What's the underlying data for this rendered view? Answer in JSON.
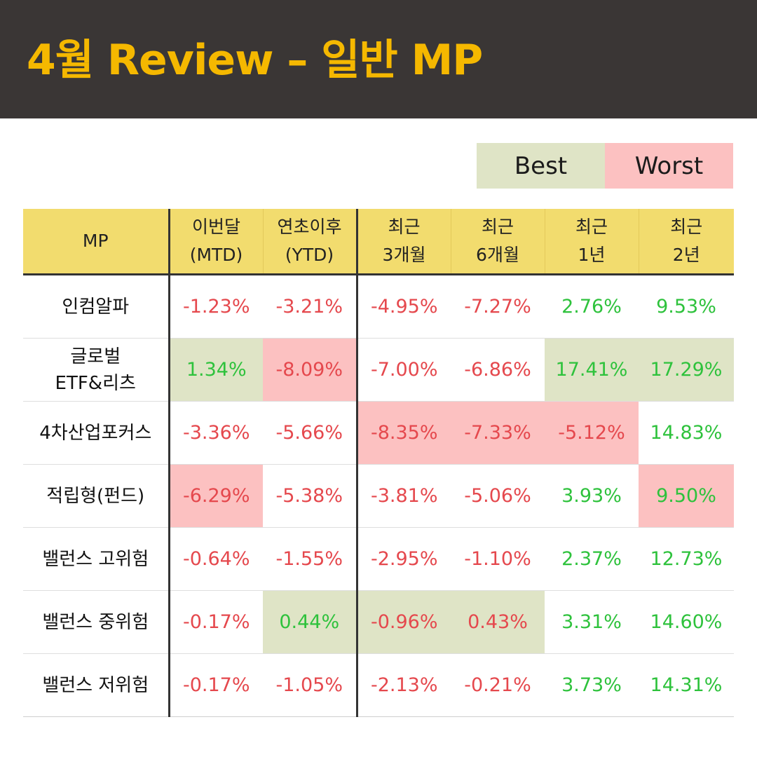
{
  "title": "4월 Review – 일반 MP",
  "legend": {
    "best": "Best",
    "worst": "Worst"
  },
  "colors": {
    "header_bg": "#3a3635",
    "title": "#f5b800",
    "table_header": "#f2dc6e",
    "best_bg": "#dfe4c6",
    "worst_bg": "#fcc1c1",
    "negative": "#e5484d",
    "positive": "#2ec23c"
  },
  "table": {
    "headers": [
      {
        "l1": "MP",
        "l2": ""
      },
      {
        "l1": "이번달",
        "l2": "(MTD)"
      },
      {
        "l1": "연초이후",
        "l2": "(YTD)"
      },
      {
        "l1": "최근",
        "l2": "3개월"
      },
      {
        "l1": "최근",
        "l2": "6개월"
      },
      {
        "l1": "최근",
        "l2": "1년"
      },
      {
        "l1": "최근",
        "l2": "2년"
      }
    ],
    "rows": [
      {
        "name_l1": "인컴알파",
        "name_l2": "",
        "v": [
          "-1.23%",
          "-3.21%",
          "-4.95%",
          "-7.27%",
          "2.76%",
          "9.53%"
        ]
      },
      {
        "name_l1": "글로벌",
        "name_l2": "ETF&리츠",
        "v": [
          "1.34%",
          "-8.09%",
          "-7.00%",
          "-6.86%",
          "17.41%",
          "17.29%"
        ]
      },
      {
        "name_l1": "4차산업포커스",
        "name_l2": "",
        "v": [
          "-3.36%",
          "-5.66%",
          "-8.35%",
          "-7.33%",
          "-5.12%",
          "14.83%"
        ]
      },
      {
        "name_l1": "적립형(펀드)",
        "name_l2": "",
        "v": [
          "-6.29%",
          "-5.38%",
          "-3.81%",
          "-5.06%",
          "3.93%",
          "9.50%"
        ]
      },
      {
        "name_l1": "밸런스 고위험",
        "name_l2": "",
        "v": [
          "-0.64%",
          "-1.55%",
          "-2.95%",
          "-1.10%",
          "2.37%",
          "12.73%"
        ]
      },
      {
        "name_l1": "밸런스 중위험",
        "name_l2": "",
        "v": [
          "-0.17%",
          "0.44%",
          "-0.96%",
          "0.43%",
          "3.31%",
          "14.60%"
        ]
      },
      {
        "name_l1": "밸런스 저위험",
        "name_l2": "",
        "v": [
          "-0.17%",
          "-1.05%",
          "-2.13%",
          "-0.21%",
          "3.73%",
          "14.31%"
        ]
      }
    ]
  }
}
